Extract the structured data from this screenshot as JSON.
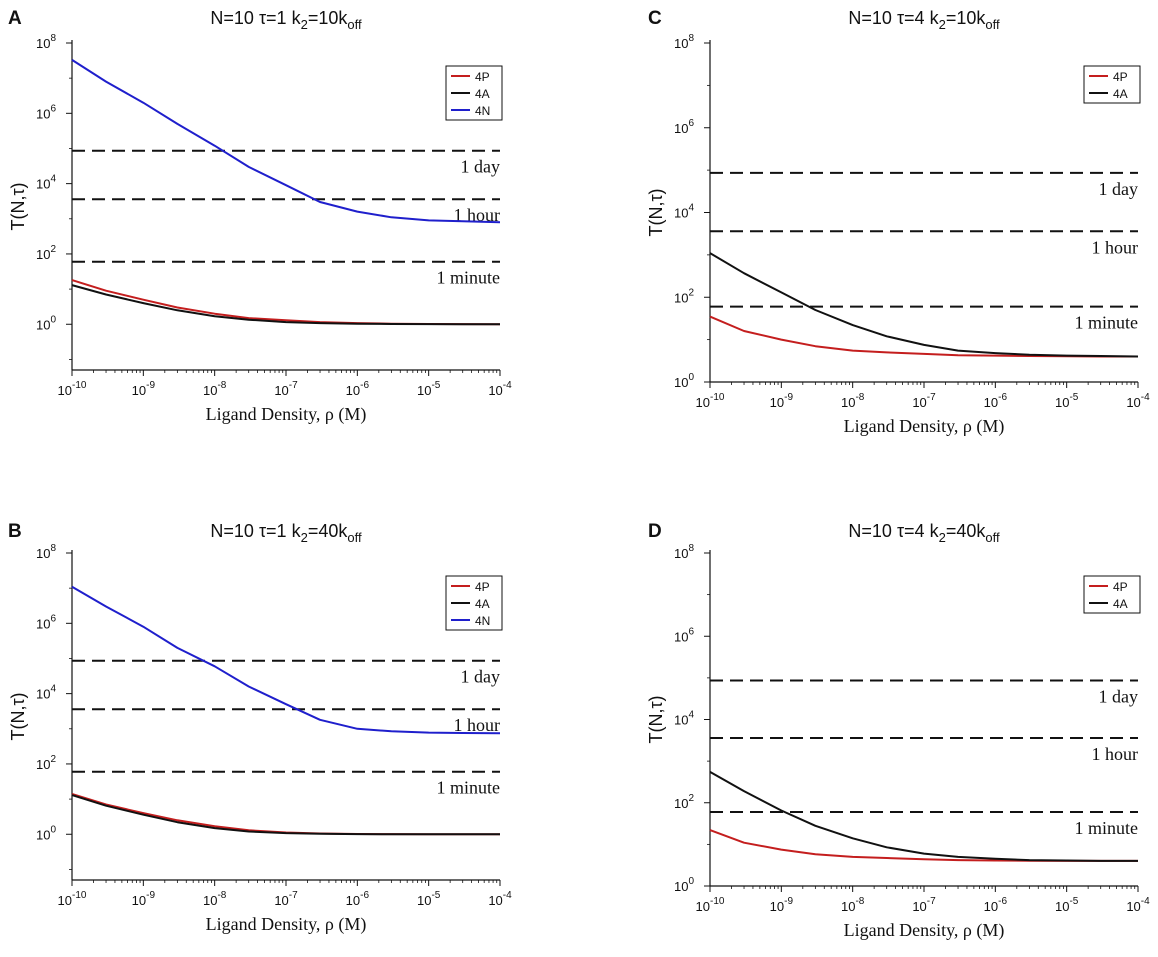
{
  "figure": {
    "x_tick_exponents": [
      "-10",
      "-9",
      "-8",
      "-7",
      "-6",
      "-5",
      "-4"
    ],
    "y_tick_exponents": [
      "0",
      "2",
      "4",
      "6",
      "8"
    ],
    "tick_base": "10",
    "xlabel": "Ligand Density, ρ (M)",
    "ylabel": "T(N,τ)",
    "reference_lines": [
      {
        "label": "1 day",
        "value": 86400
      },
      {
        "label": "1 hour",
        "value": 3600
      },
      {
        "label": "1 minute",
        "value": 60
      }
    ],
    "colors": {
      "4P": "#c41e1e",
      "4A": "#111111",
      "4N": "#1f1fcc",
      "reference": "#111111"
    }
  },
  "chart_data": [
    {
      "panel": "A",
      "type": "line",
      "title_prefix": "N=10 τ=1 k",
      "title_sub": "2",
      "title_mid": "=10k",
      "title_sub2": "off",
      "x_scale": "log",
      "y_scale": "log",
      "xlim": [
        1e-10,
        0.0001
      ],
      "ylim": [
        0.05,
        100000000
      ],
      "x": [
        1e-10,
        3e-10,
        1e-09,
        3e-09,
        1e-08,
        3e-08,
        1e-07,
        3e-07,
        1e-06,
        3e-06,
        1e-05,
        3e-05,
        0.0001
      ],
      "series": [
        {
          "name": "4P",
          "values": [
            18,
            9,
            5,
            3,
            2,
            1.5,
            1.3,
            1.15,
            1.08,
            1.04,
            1.02,
            1.01,
            1.0
          ]
        },
        {
          "name": "4A",
          "values": [
            13,
            7,
            4,
            2.5,
            1.7,
            1.35,
            1.15,
            1.08,
            1.04,
            1.02,
            1.01,
            1.0,
            1.0
          ]
        },
        {
          "name": "4N",
          "values": [
            33000000,
            8000000,
            2000000,
            500000,
            120000,
            30000,
            9000,
            3000,
            1600,
            1100,
            900,
            850,
            800
          ]
        }
      ]
    },
    {
      "panel": "C",
      "type": "line",
      "title_prefix": "N=10 τ=4 k",
      "title_sub": "2",
      "title_mid": "=10k",
      "title_sub2": "off",
      "x_scale": "log",
      "y_scale": "log",
      "xlim": [
        1e-10,
        0.0001
      ],
      "ylim": [
        1,
        100000000
      ],
      "x": [
        1e-10,
        3e-10,
        1e-09,
        3e-09,
        1e-08,
        3e-08,
        1e-07,
        3e-07,
        1e-06,
        3e-06,
        1e-05,
        3e-05,
        0.0001
      ],
      "series": [
        {
          "name": "4P",
          "values": [
            35,
            16,
            10,
            7,
            5.5,
            5,
            4.6,
            4.3,
            4.2,
            4.1,
            4.05,
            4.0,
            4.0
          ]
        },
        {
          "name": "4A",
          "values": [
            1100,
            370,
            130,
            50,
            22,
            12,
            7.5,
            5.5,
            4.8,
            4.4,
            4.2,
            4.1,
            4.0
          ]
        }
      ]
    },
    {
      "panel": "B",
      "type": "line",
      "title_prefix": "N=10 τ=1 k",
      "title_sub": "2",
      "title_mid": "=40k",
      "title_sub2": "off",
      "x_scale": "log",
      "y_scale": "log",
      "xlim": [
        1e-10,
        0.0001
      ],
      "ylim": [
        0.05,
        100000000
      ],
      "x": [
        1e-10,
        3e-10,
        1e-09,
        3e-09,
        1e-08,
        3e-08,
        1e-07,
        3e-07,
        1e-06,
        3e-06,
        1e-05,
        3e-05,
        0.0001
      ],
      "series": [
        {
          "name": "4P",
          "values": [
            14,
            7,
            4,
            2.5,
            1.7,
            1.3,
            1.12,
            1.05,
            1.02,
            1.01,
            1.0,
            1.0,
            1.0
          ]
        },
        {
          "name": "4A",
          "values": [
            13,
            6.5,
            3.6,
            2.2,
            1.5,
            1.2,
            1.08,
            1.03,
            1.01,
            1.0,
            1.0,
            1.0,
            1.0
          ]
        },
        {
          "name": "4N",
          "values": [
            11000000,
            3000000,
            800000,
            200000,
            60000,
            16000,
            5000,
            1800,
            1000,
            850,
            780,
            760,
            750
          ]
        }
      ]
    },
    {
      "panel": "D",
      "type": "line",
      "title_prefix": "N=10 τ=4 k",
      "title_sub": "2",
      "title_mid": "=40k",
      "title_sub2": "off",
      "x_scale": "log",
      "y_scale": "log",
      "xlim": [
        1e-10,
        0.0001
      ],
      "ylim": [
        1,
        100000000
      ],
      "x": [
        1e-10,
        3e-10,
        1e-09,
        3e-09,
        1e-08,
        3e-08,
        1e-07,
        3e-07,
        1e-06,
        3e-06,
        1e-05,
        3e-05,
        0.0001
      ],
      "series": [
        {
          "name": "4P",
          "values": [
            22,
            11,
            7.5,
            5.8,
            5,
            4.7,
            4.4,
            4.2,
            4.1,
            4.05,
            4.0,
            4.0,
            4.0
          ]
        },
        {
          "name": "4A",
          "values": [
            550,
            190,
            65,
            28,
            14,
            8.5,
            6,
            5,
            4.5,
            4.2,
            4.1,
            4.0,
            4.0
          ]
        }
      ]
    }
  ]
}
